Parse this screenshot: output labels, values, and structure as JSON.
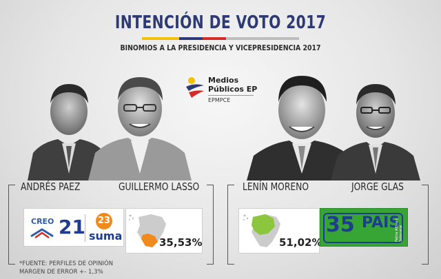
{
  "header": {
    "title": "INTENCIÓN DE VOTO 2017",
    "subtitle": "BINOMIOS A LA PRESIDENCIA Y VICEPRESIDENCIA 2017",
    "bar_colors": [
      "#f2c200",
      "#2e3a73",
      "#d32a2a",
      "#bdbdbd"
    ]
  },
  "logo": {
    "line1": "Medios",
    "line2": "Públicos EP",
    "line3": "EPMPCE"
  },
  "left_ticket": {
    "president": "ANDRÉS PAEZ",
    "vice_president": "GUILLERMO LASSO",
    "parties": {
      "creo_label": "CREO",
      "creo_number": "21",
      "suma_number": "23",
      "suma_label": "suma"
    },
    "percentage": "35,53%",
    "vote_share": 35.53,
    "map_color": "#f08a1c"
  },
  "right_ticket": {
    "president": "LENÍN MORENO",
    "vice_president": "JORGE GLAS",
    "percentage": "51,02%",
    "vote_share": 51.02,
    "map_color": "#8cc63f",
    "party": {
      "number": "35",
      "name": "PAIS",
      "slogan": "Patria Altiva y Soberana",
      "color": "#37a535"
    }
  },
  "footnote": {
    "line1": "*FUENTE: PERFILES DE OPINIÓN",
    "line2": "MARGEN DE ERROR +- 1,3%"
  }
}
